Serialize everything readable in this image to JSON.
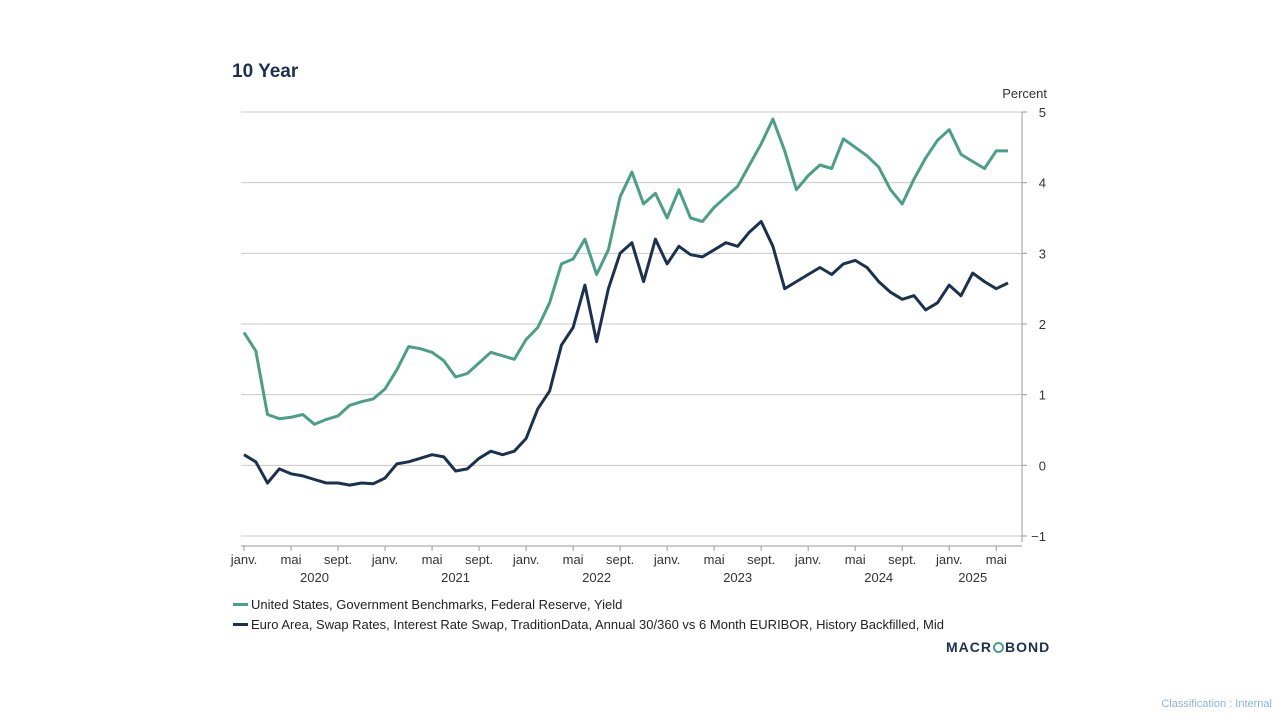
{
  "chart_data": {
    "type": "line",
    "title": "10 Year",
    "unit_label": "Percent",
    "ylim": [
      -1,
      5
    ],
    "yticks": [
      -1,
      0,
      1,
      2,
      3,
      4,
      5
    ],
    "grid": true,
    "x_axis": {
      "start": "2020-01",
      "end": "2025-06",
      "tick_labels": [
        {
          "date": "2020-01",
          "label": "janv."
        },
        {
          "date": "2020-05",
          "label": "mai"
        },
        {
          "date": "2020-09",
          "label": "sept."
        },
        {
          "date": "2021-01",
          "label": "janv."
        },
        {
          "date": "2021-05",
          "label": "mai"
        },
        {
          "date": "2021-09",
          "label": "sept."
        },
        {
          "date": "2022-01",
          "label": "janv."
        },
        {
          "date": "2022-05",
          "label": "mai"
        },
        {
          "date": "2022-09",
          "label": "sept."
        },
        {
          "date": "2023-01",
          "label": "janv."
        },
        {
          "date": "2023-05",
          "label": "mai"
        },
        {
          "date": "2023-09",
          "label": "sept."
        },
        {
          "date": "2024-01",
          "label": "janv."
        },
        {
          "date": "2024-05",
          "label": "mai"
        },
        {
          "date": "2024-09",
          "label": "sept."
        },
        {
          "date": "2025-01",
          "label": "janv."
        },
        {
          "date": "2025-05",
          "label": "mai"
        }
      ],
      "year_labels": [
        {
          "date": "2020-07",
          "label": "2020"
        },
        {
          "date": "2021-07",
          "label": "2021"
        },
        {
          "date": "2022-07",
          "label": "2022"
        },
        {
          "date": "2023-07",
          "label": "2023"
        },
        {
          "date": "2024-07",
          "label": "2024"
        },
        {
          "date": "2025-03",
          "label": "2025"
        }
      ]
    },
    "series": [
      {
        "name": "United States, Government Benchmarks, Federal Reserve, Yield",
        "color": "#4a9f88",
        "points": [
          [
            "2020-01",
            1.88
          ],
          [
            "2020-02",
            1.62
          ],
          [
            "2020-03",
            0.72
          ],
          [
            "2020-04",
            0.66
          ],
          [
            "2020-05",
            0.68
          ],
          [
            "2020-06",
            0.72
          ],
          [
            "2020-07",
            0.58
          ],
          [
            "2020-08",
            0.65
          ],
          [
            "2020-09",
            0.7
          ],
          [
            "2020-10",
            0.85
          ],
          [
            "2020-11",
            0.9
          ],
          [
            "2020-12",
            0.94
          ],
          [
            "2021-01",
            1.08
          ],
          [
            "2021-02",
            1.35
          ],
          [
            "2021-03",
            1.68
          ],
          [
            "2021-04",
            1.65
          ],
          [
            "2021-05",
            1.6
          ],
          [
            "2021-06",
            1.48
          ],
          [
            "2021-07",
            1.25
          ],
          [
            "2021-08",
            1.3
          ],
          [
            "2021-09",
            1.45
          ],
          [
            "2021-10",
            1.6
          ],
          [
            "2021-11",
            1.55
          ],
          [
            "2021-12",
            1.5
          ],
          [
            "2022-01",
            1.78
          ],
          [
            "2022-02",
            1.95
          ],
          [
            "2022-03",
            2.3
          ],
          [
            "2022-04",
            2.85
          ],
          [
            "2022-05",
            2.92
          ],
          [
            "2022-06",
            3.2
          ],
          [
            "2022-07",
            2.7
          ],
          [
            "2022-08",
            3.05
          ],
          [
            "2022-09",
            3.8
          ],
          [
            "2022-10",
            4.15
          ],
          [
            "2022-11",
            3.7
          ],
          [
            "2022-12",
            3.85
          ],
          [
            "2023-01",
            3.5
          ],
          [
            "2023-02",
            3.9
          ],
          [
            "2023-03",
            3.5
          ],
          [
            "2023-04",
            3.45
          ],
          [
            "2023-05",
            3.65
          ],
          [
            "2023-06",
            3.8
          ],
          [
            "2023-07",
            3.95
          ],
          [
            "2023-08",
            4.25
          ],
          [
            "2023-09",
            4.55
          ],
          [
            "2023-10",
            4.9
          ],
          [
            "2023-11",
            4.45
          ],
          [
            "2023-12",
            3.9
          ],
          [
            "2024-01",
            4.1
          ],
          [
            "2024-02",
            4.25
          ],
          [
            "2024-03",
            4.2
          ],
          [
            "2024-04",
            4.62
          ],
          [
            "2024-05",
            4.5
          ],
          [
            "2024-06",
            4.38
          ],
          [
            "2024-07",
            4.22
          ],
          [
            "2024-08",
            3.9
          ],
          [
            "2024-09",
            3.7
          ],
          [
            "2024-10",
            4.05
          ],
          [
            "2024-11",
            4.35
          ],
          [
            "2024-12",
            4.6
          ],
          [
            "2025-01",
            4.75
          ],
          [
            "2025-02",
            4.4
          ],
          [
            "2025-03",
            4.3
          ],
          [
            "2025-04",
            4.2
          ],
          [
            "2025-05",
            4.45
          ],
          [
            "2025-06",
            4.45
          ]
        ]
      },
      {
        "name": "Euro Area, Swap Rates, Interest Rate Swap, TraditionData, Annual 30/360 vs 6 Month EURIBOR, History Backfilled, Mid",
        "color": "#1b3150",
        "points": [
          [
            "2020-01",
            0.15
          ],
          [
            "2020-02",
            0.05
          ],
          [
            "2020-03",
            -0.25
          ],
          [
            "2020-04",
            -0.05
          ],
          [
            "2020-05",
            -0.12
          ],
          [
            "2020-06",
            -0.15
          ],
          [
            "2020-07",
            -0.2
          ],
          [
            "2020-08",
            -0.25
          ],
          [
            "2020-09",
            -0.25
          ],
          [
            "2020-10",
            -0.28
          ],
          [
            "2020-11",
            -0.25
          ],
          [
            "2020-12",
            -0.26
          ],
          [
            "2021-01",
            -0.18
          ],
          [
            "2021-02",
            0.02
          ],
          [
            "2021-03",
            0.05
          ],
          [
            "2021-04",
            0.1
          ],
          [
            "2021-05",
            0.15
          ],
          [
            "2021-06",
            0.12
          ],
          [
            "2021-07",
            -0.08
          ],
          [
            "2021-08",
            -0.05
          ],
          [
            "2021-09",
            0.1
          ],
          [
            "2021-10",
            0.2
          ],
          [
            "2021-11",
            0.15
          ],
          [
            "2021-12",
            0.2
          ],
          [
            "2022-01",
            0.38
          ],
          [
            "2022-02",
            0.8
          ],
          [
            "2022-03",
            1.05
          ],
          [
            "2022-04",
            1.7
          ],
          [
            "2022-05",
            1.95
          ],
          [
            "2022-06",
            2.55
          ],
          [
            "2022-07",
            1.75
          ],
          [
            "2022-08",
            2.5
          ],
          [
            "2022-09",
            3.0
          ],
          [
            "2022-10",
            3.15
          ],
          [
            "2022-11",
            2.6
          ],
          [
            "2022-12",
            3.2
          ],
          [
            "2023-01",
            2.85
          ],
          [
            "2023-02",
            3.1
          ],
          [
            "2023-03",
            2.98
          ],
          [
            "2023-04",
            2.95
          ],
          [
            "2023-05",
            3.05
          ],
          [
            "2023-06",
            3.15
          ],
          [
            "2023-07",
            3.1
          ],
          [
            "2023-08",
            3.3
          ],
          [
            "2023-09",
            3.45
          ],
          [
            "2023-10",
            3.1
          ],
          [
            "2023-11",
            2.5
          ],
          [
            "2023-12",
            2.6
          ],
          [
            "2024-01",
            2.7
          ],
          [
            "2024-02",
            2.8
          ],
          [
            "2024-03",
            2.7
          ],
          [
            "2024-04",
            2.85
          ],
          [
            "2024-05",
            2.9
          ],
          [
            "2024-06",
            2.8
          ],
          [
            "2024-07",
            2.6
          ],
          [
            "2024-08",
            2.45
          ],
          [
            "2024-09",
            2.35
          ],
          [
            "2024-10",
            2.4
          ],
          [
            "2024-11",
            2.2
          ],
          [
            "2024-12",
            2.3
          ],
          [
            "2025-01",
            2.55
          ],
          [
            "2025-02",
            2.4
          ],
          [
            "2025-03",
            2.72
          ],
          [
            "2025-04",
            2.6
          ],
          [
            "2025-05",
            2.5
          ],
          [
            "2025-06",
            2.58
          ]
        ]
      }
    ]
  },
  "logo": {
    "text_before": "MACR",
    "text_after": "BOND"
  },
  "footer": {
    "classification": "Classification : Internal"
  }
}
